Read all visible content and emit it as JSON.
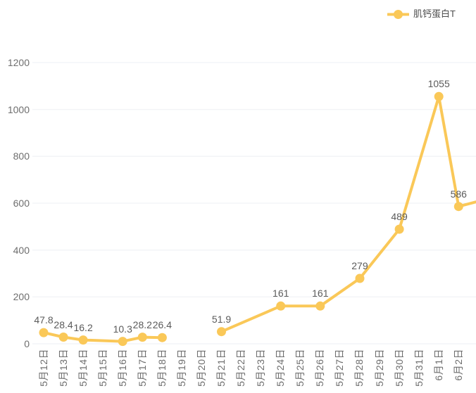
{
  "legend": {
    "label": "肌钙蛋白T",
    "position": "top-right"
  },
  "colors": {
    "series": "#fac858",
    "gridline": "#edeff4",
    "data_label": "#5b5b5b",
    "axis_label": "#6e6e6e",
    "legend_text": "#4d4d4d",
    "background": "#ffffff"
  },
  "chart_data": {
    "type": "line",
    "title": "",
    "xlabel": "",
    "ylabel": "",
    "categories": [
      "5月12日",
      "5月13日",
      "5月14日",
      "5月15日",
      "5月16日",
      "5月17日",
      "5月18日",
      "5月19日",
      "5月20日",
      "5月21日",
      "5月22日",
      "5月23日",
      "5月24日",
      "5月25日",
      "5月26日",
      "5月27日",
      "5月28日",
      "5月29日",
      "5月30日",
      "5月31日",
      "6月1日",
      "6月2日"
    ],
    "ylim": [
      0,
      1200
    ],
    "yticks": [
      0,
      200,
      400,
      600,
      800,
      1000,
      1200
    ],
    "grid": true,
    "legend_position": "top-right",
    "series": [
      {
        "name": "肌钙蛋白T",
        "unit": "T",
        "color": "#fac858",
        "segments": [
          {
            "points": [
              {
                "i": 0,
                "v": 47.8,
                "label": "47.8"
              },
              {
                "i": 1,
                "v": 28.4,
                "label": "28.4"
              },
              {
                "i": 2,
                "v": 16.2,
                "label": "16.2"
              },
              {
                "i": 4,
                "v": 10.3,
                "label": "10.3"
              },
              {
                "i": 5,
                "v": 28.2,
                "label": "28.2"
              },
              {
                "i": 6,
                "v": 26.4,
                "label": "26.4"
              }
            ]
          },
          {
            "points": [
              {
                "i": 9,
                "v": 51.9,
                "label": "51.9"
              },
              {
                "i": 12,
                "v": 161,
                "label": "161"
              },
              {
                "i": 14,
                "v": 161,
                "label": "161"
              },
              {
                "i": 16,
                "v": 279,
                "label": "279"
              },
              {
                "i": 18,
                "v": 489,
                "label": "489"
              },
              {
                "i": 20,
                "v": 1055,
                "label": "1055"
              },
              {
                "i": 21,
                "v": 586,
                "label": "586"
              },
              {
                "i": 23,
                "v": 630,
                "tail": true
              }
            ]
          }
        ]
      }
    ]
  }
}
